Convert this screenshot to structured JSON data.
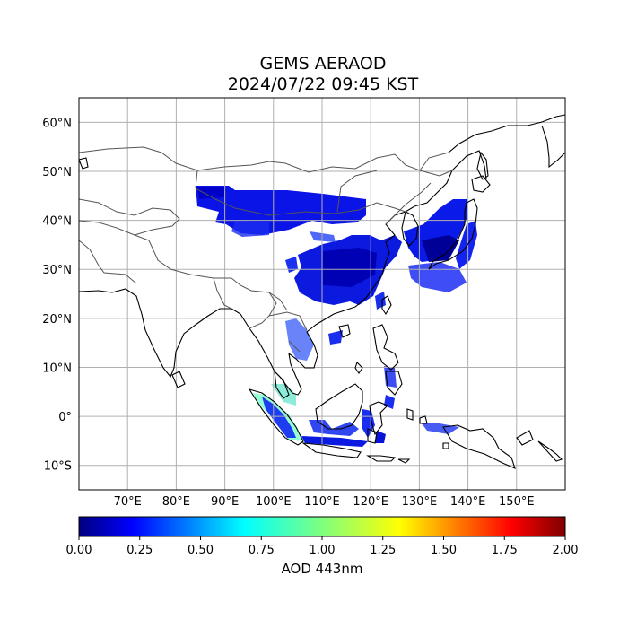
{
  "title": {
    "line1": "GEMS AERAOD",
    "line2": "2024/07/22 09:45 KST"
  },
  "map": {
    "lon_ticks": [
      "70°E",
      "80°E",
      "90°E",
      "100°E",
      "110°E",
      "120°E",
      "130°E",
      "140°E",
      "150°E"
    ],
    "lat_ticks": [
      "60°N",
      "50°N",
      "40°N",
      "30°N",
      "20°N",
      "10°N",
      "0°",
      "10°S"
    ],
    "lon_values": [
      70,
      80,
      90,
      100,
      110,
      120,
      130,
      140,
      150
    ],
    "lat_values": [
      60,
      50,
      40,
      30,
      20,
      10,
      0,
      -10
    ],
    "extent": {
      "lon_min": 60,
      "lon_max": 160,
      "lat_min": -15,
      "lat_max": 65
    },
    "grid": true,
    "coastline_color": "#000000",
    "border_color": "#555555"
  },
  "colorbar": {
    "label": "AOD 443nm",
    "ticks": [
      "0.00",
      "0.25",
      "0.50",
      "0.75",
      "1.00",
      "1.25",
      "1.50",
      "1.75",
      "2.00"
    ],
    "min": 0,
    "max": 2,
    "colormap": "jet"
  }
}
